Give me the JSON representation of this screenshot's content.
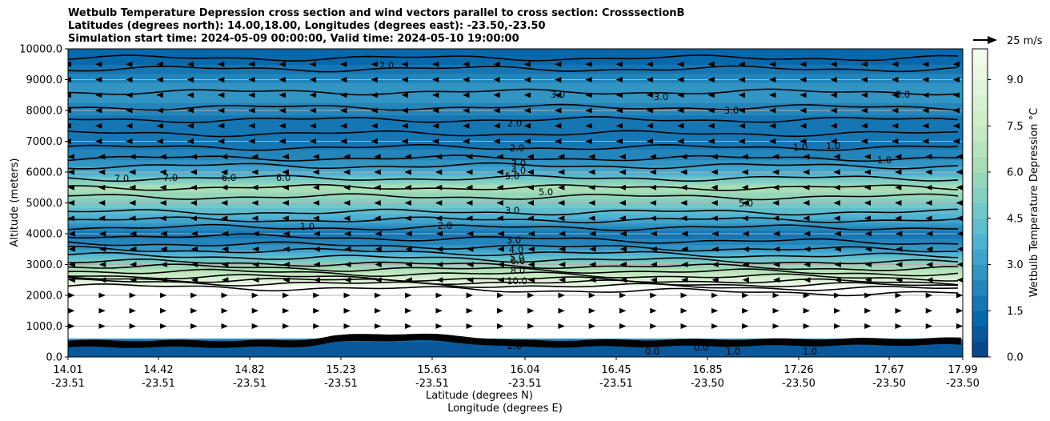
{
  "chart_data": {
    "type": "heatmap",
    "title_lines": [
      "Wetbulb Temperature Depression cross section and wind vectors parallel to cross section: CrosssectionB",
      "Latitudes (degrees north): 14.00,18.00, Longitudes (degrees east): -23.50,-23.50",
      "Simulation start time: 2024-05-09 00:00:00, Valid time: 2024-05-10 19:00:00"
    ],
    "ylabel": "Altitude (meters)",
    "xlabel_lines": [
      "Latitude (degrees N)",
      "Longitude (degrees E)"
    ],
    "ylim": [
      0,
      10000
    ],
    "yticks": [
      "0.0",
      "1000.0",
      "2000.0",
      "3000.0",
      "4000.0",
      "5000.0",
      "6000.0",
      "7000.0",
      "8000.0",
      "9000.0",
      "10000.0"
    ],
    "xticks": [
      {
        "lat": "14.01",
        "lon": "-23.51"
      },
      {
        "lat": "14.42",
        "lon": "-23.51"
      },
      {
        "lat": "14.82",
        "lon": "-23.51"
      },
      {
        "lat": "15.23",
        "lon": "-23.51"
      },
      {
        "lat": "15.63",
        "lon": "-23.51"
      },
      {
        "lat": "16.04",
        "lon": "-23.51"
      },
      {
        "lat": "16.45",
        "lon": "-23.51"
      },
      {
        "lat": "16.85",
        "lon": "-23.50"
      },
      {
        "lat": "17.26",
        "lon": "-23.50"
      },
      {
        "lat": "17.67",
        "lon": "-23.50"
      },
      {
        "lat": "17.99",
        "lon": "-23.50"
      }
    ],
    "colorbar": {
      "label": "Wetbulb Temperature Depression °C",
      "range": [
        0,
        10
      ],
      "ticks": [
        "0.0",
        "1.5",
        "3.0",
        "4.5",
        "6.0",
        "7.5",
        "9.0"
      ],
      "colormap": "GnBu_r",
      "stops": [
        "#084081",
        "#0868ac",
        "#2b8cbe",
        "#4eb3d3",
        "#7bccc4",
        "#a8ddb5",
        "#ccebc5",
        "#e0f3db",
        "#f7fcf0"
      ]
    },
    "vector_key": "25 m/s",
    "profile_by_height": [
      {
        "z": 0,
        "depression": 0.5
      },
      {
        "z": 500,
        "depression": 1.0
      },
      {
        "z": 1000,
        "depression": 10
      },
      {
        "z": 2200,
        "depression": 10
      },
      {
        "z": 2500,
        "depression": 8.5
      },
      {
        "z": 3000,
        "depression": 5.5
      },
      {
        "z": 3500,
        "depression": 3.0
      },
      {
        "z": 4000,
        "depression": 1.5
      },
      {
        "z": 4500,
        "depression": 3.5
      },
      {
        "z": 5000,
        "depression": 5.0
      },
      {
        "z": 5500,
        "depression": 6.5
      },
      {
        "z": 6000,
        "depression": 3.5
      },
      {
        "z": 6500,
        "depression": 2.2
      },
      {
        "z": 7000,
        "depression": 1.8
      },
      {
        "z": 7500,
        "depression": 1.6
      },
      {
        "z": 8000,
        "depression": 2.2
      },
      {
        "z": 8500,
        "depression": 2.8
      },
      {
        "z": 9000,
        "depression": 2.4
      },
      {
        "z": 9500,
        "depression": 1.5
      },
      {
        "z": 10000,
        "depression": 1.0
      }
    ],
    "contour_labels": [
      "2.0",
      "3.0",
      "2.0",
      "2.0",
      "3.0",
      "4.0",
      "5.0",
      "7.0",
      "7.0",
      "6.0",
      "6.0",
      "5.0",
      "5.0",
      "3.0",
      "1.0",
      "2.0",
      "3.0",
      "4.0",
      "5.0",
      "6.0",
      "8.0",
      "10.0",
      "1.0",
      "1.0",
      "1.0",
      "0.0",
      "1.0",
      "1.0",
      "3.0",
      "3.0",
      "3.0",
      "0.0",
      "2.0"
    ]
  }
}
